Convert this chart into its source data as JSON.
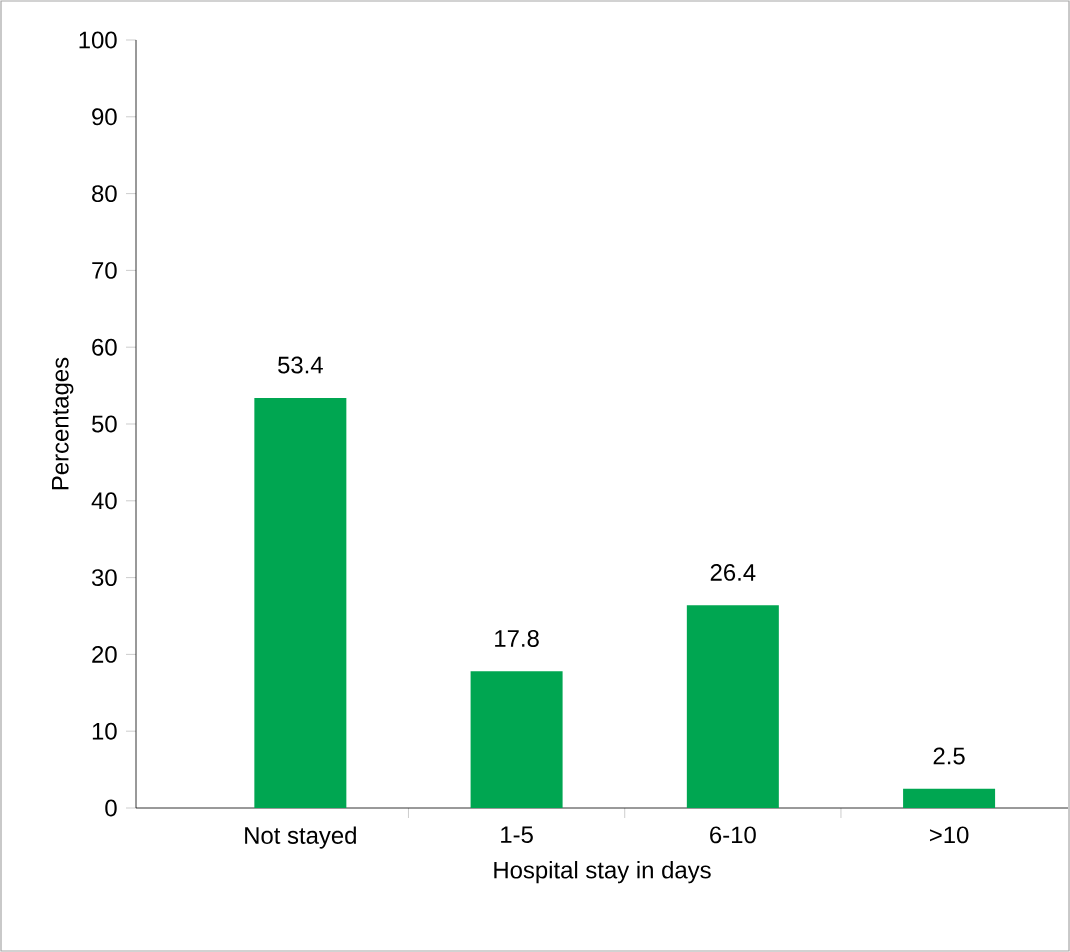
{
  "chart_data": {
    "type": "bar",
    "xlabel": "Hospital stay in days",
    "ylabel": "Percentages",
    "categories": [
      "Not stayed",
      "1-5",
      "6-10",
      ">10"
    ],
    "values": [
      53.4,
      17.8,
      26.4,
      2.5
    ],
    "color": "#00a651",
    "ylim": [
      0,
      100
    ],
    "yticks": [
      0,
      10,
      20,
      30,
      40,
      50,
      60,
      70,
      80,
      90,
      100
    ],
    "data_labels": true
  }
}
